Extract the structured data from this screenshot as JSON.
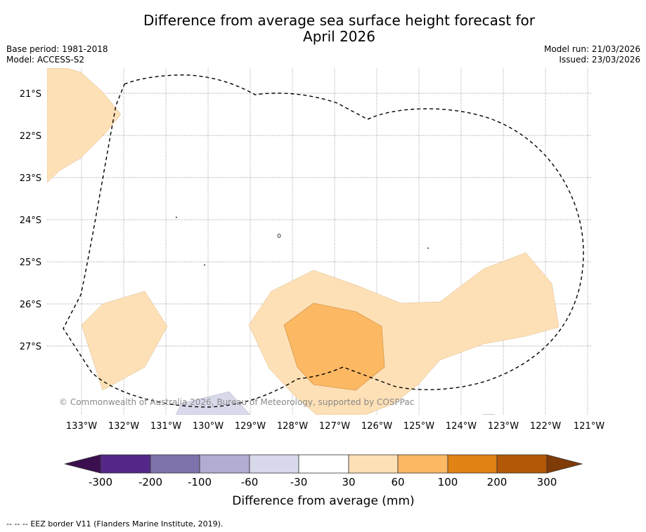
{
  "title_line1": "Difference from average sea surface height forecast for",
  "title_line2": "April 2026",
  "base_period": "Base period: 1981-2018",
  "model": "Model: ACCESS-S2",
  "model_run": "Model run: 21/03/2026",
  "issued": "Issued: 23/03/2026",
  "copyright": "© Commonwealth of Australia 2026, Bureau of Meteorology, supported by COSPPac",
  "map": {
    "lat_labels": [
      "21°S",
      "22°S",
      "23°S",
      "24°S",
      "25°S",
      "26°S",
      "27°S"
    ],
    "lon_labels": [
      "133°W",
      "132°W",
      "131°W",
      "130°W",
      "129°W",
      "128°W",
      "127°W",
      "126°W",
      "125°W",
      "124°W",
      "123°W",
      "122°W",
      "121°W"
    ]
  },
  "colorbar": {
    "label": "Difference from average (mm)",
    "ticks": [
      "-300",
      "-200",
      "-100",
      "-60",
      "-30",
      "30",
      "60",
      "100",
      "200",
      "300"
    ],
    "colors": [
      "#3b0f4f",
      "#542788",
      "#8073ac",
      "#b2abd2",
      "#d8daeb",
      "#ffffff",
      "#fee0b6",
      "#fdb863",
      "#e08214",
      "#b35806",
      "#7f3b08"
    ]
  },
  "footnote_dash": "-- -- --",
  "footnote": "EEZ border V11 (Flanders Marine Institute, 2019)."
}
